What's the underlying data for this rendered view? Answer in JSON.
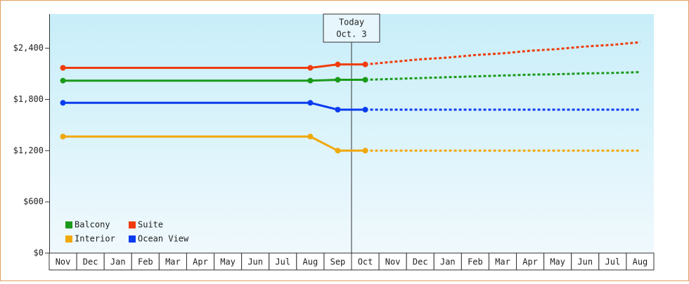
{
  "chart_data": {
    "type": "line",
    "categories": [
      "Nov",
      "Dec",
      "Jan",
      "Feb",
      "Mar",
      "Apr",
      "May",
      "Jun",
      "Jul",
      "Aug",
      "Sep",
      "Oct",
      "Nov",
      "Dec",
      "Jan",
      "Feb",
      "Mar",
      "Apr",
      "May",
      "Jun",
      "Jul",
      "Aug"
    ],
    "series": [
      {
        "name": "Balcony",
        "color": "#1a9a1a",
        "values": [
          2020,
          2020,
          2020,
          2020,
          2020,
          2020,
          2020,
          2020,
          2020,
          2020,
          2030,
          2030,
          2040,
          2050,
          2060,
          2070,
          2080,
          2090,
          2095,
          2105,
          2110,
          2120
        ]
      },
      {
        "name": "Suite",
        "color": "#f03c0a",
        "values": [
          2170,
          2170,
          2170,
          2170,
          2170,
          2170,
          2170,
          2170,
          2170,
          2170,
          2210,
          2210,
          2240,
          2270,
          2290,
          2320,
          2340,
          2370,
          2390,
          2420,
          2440,
          2470
        ]
      },
      {
        "name": "Interior",
        "color": "#f0a80a",
        "values": [
          1365,
          1365,
          1365,
          1365,
          1365,
          1365,
          1365,
          1365,
          1365,
          1365,
          1200,
          1200,
          1200,
          1200,
          1200,
          1200,
          1200,
          1200,
          1200,
          1200,
          1200,
          1200
        ]
      },
      {
        "name": "Ocean View",
        "color": "#0a3cf0",
        "values": [
          1760,
          1760,
          1760,
          1760,
          1760,
          1760,
          1760,
          1760,
          1760,
          1760,
          1680,
          1680,
          1680,
          1680,
          1680,
          1680,
          1680,
          1680,
          1680,
          1680,
          1680,
          1680
        ]
      }
    ],
    "ylim": [
      0,
      2800
    ],
    "yticks": [
      {
        "value": 0,
        "label": "$0"
      },
      {
        "value": 600,
        "label": "$600"
      },
      {
        "value": 1200,
        "label": "$1,200"
      },
      {
        "value": 1800,
        "label": "$1,800"
      },
      {
        "value": 2400,
        "label": "$2,400"
      }
    ],
    "today": {
      "label": "Today",
      "date": "Oct. 3",
      "category": "Oct"
    }
  }
}
